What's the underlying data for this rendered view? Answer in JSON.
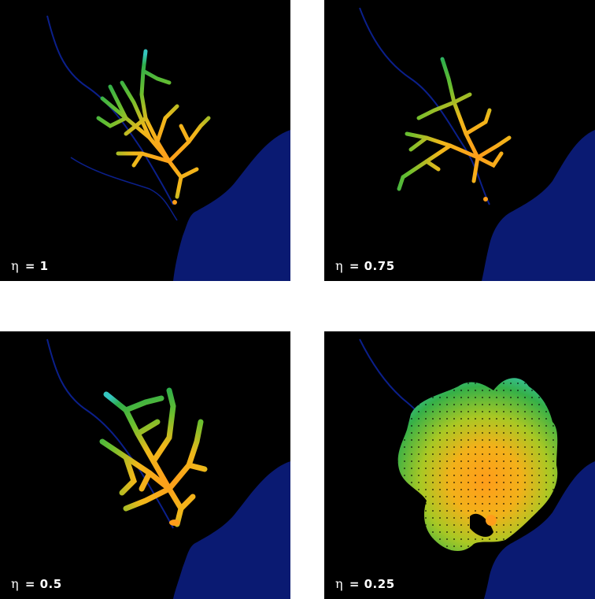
{
  "panels": [
    {
      "id": "p1",
      "symbol": "η",
      "label": "= 1",
      "eta": 1
    },
    {
      "id": "p2",
      "symbol": "η",
      "label": "= 0.75",
      "eta": 0.75
    },
    {
      "id": "p3",
      "symbol": "η",
      "label": "= 0.5",
      "eta": 0.5
    },
    {
      "id": "p4",
      "symbol": "η",
      "label": "= 0.25",
      "eta": 0.25
    }
  ],
  "colors": {
    "background": "#000000",
    "water": "#0a1a72",
    "river": "#0b1f8a",
    "growth_center": "#ff9d1a",
    "growth_mid": "#e6c21a",
    "growth_edge": "#39b54a",
    "growth_tip": "#35c6c0"
  }
}
